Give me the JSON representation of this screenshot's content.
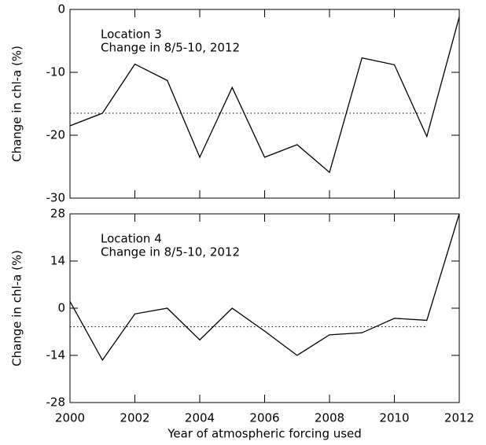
{
  "chart_data": [
    {
      "type": "line",
      "ylabel": "Change in chl-a (%)",
      "annotation": [
        "Location 3",
        "Change in 8/5-10, 2012"
      ],
      "x": [
        2000,
        2001,
        2002,
        2003,
        2004,
        2005,
        2006,
        2007,
        2008,
        2009,
        2010,
        2011,
        2012
      ],
      "values": [
        -18.5,
        -16.5,
        -8.7,
        -11.3,
        -23.5,
        -12.4,
        -23.5,
        -21.5,
        -25.9,
        -7.7,
        -8.8,
        -20.2,
        -1.2
      ],
      "color": "#000000",
      "reference_line": -16.5,
      "xlim": [
        2000,
        2012
      ],
      "xticks": [
        2000,
        2002,
        2004,
        2006,
        2008,
        2010,
        2012
      ],
      "ylim": [
        -30,
        0
      ],
      "yticks": [
        -30,
        -20,
        -10,
        0
      ]
    },
    {
      "type": "line",
      "ylabel": "Change in chl-a (%)",
      "xlabel": "Year of atmospheric forcing used",
      "annotation": [
        "Location 4",
        "Change in 8/5-10, 2012"
      ],
      "x": [
        2000,
        2001,
        2002,
        2003,
        2004,
        2005,
        2006,
        2007,
        2008,
        2009,
        2010,
        2011,
        2012
      ],
      "values": [
        2,
        -15.4,
        -1.7,
        0,
        -9.4,
        0,
        -6.8,
        -14,
        -7.9,
        -7.3,
        -3,
        -3.6,
        28
      ],
      "color": "#000000",
      "reference_line": -5.5,
      "xlim": [
        2000,
        2012
      ],
      "xticks": [
        2000,
        2002,
        2004,
        2006,
        2008,
        2010,
        2012
      ],
      "ylim": [
        -28,
        28
      ],
      "yticks": [
        -28,
        -14,
        0,
        14,
        28
      ]
    }
  ]
}
